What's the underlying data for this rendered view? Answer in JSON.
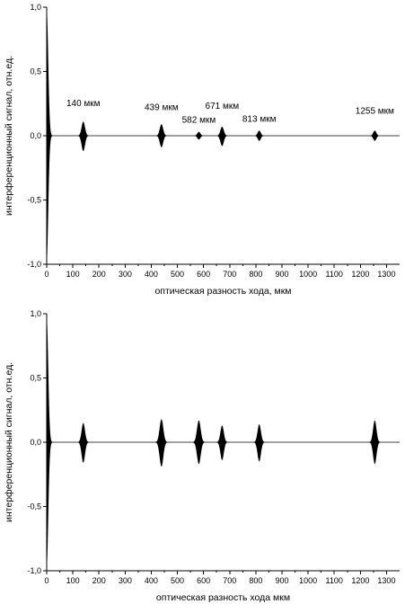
{
  "chart_data": [
    {
      "type": "line",
      "xlabel": "оптическая разность хода, мкм",
      "ylabel": "интерференционный сигнал, отн.ед.",
      "xlim": [
        0,
        1350
      ],
      "ylim": [
        -1.0,
        1.0
      ],
      "x_ticks": [
        "0",
        "100",
        "200",
        "300",
        "400",
        "500",
        "600",
        "700",
        "800",
        "900",
        "1000",
        "1100",
        "1200",
        "1300"
      ],
      "x_tick_values": [
        0,
        100,
        200,
        300,
        400,
        500,
        600,
        700,
        800,
        900,
        1000,
        1100,
        1200,
        1300
      ],
      "y_ticks": [
        "1,0",
        "0,5",
        "0,0",
        "-0,5",
        "-1,0"
      ],
      "y_tick_values": [
        1.0,
        0.5,
        0.0,
        -0.5,
        -1.0
      ],
      "grid": false,
      "series": [
        {
          "type": "interferogram-envelope",
          "packets": [
            {
              "center": 0,
              "amplitude_pos": 0.98,
              "amplitude_neg": -0.98,
              "halfwidth": 22,
              "one_sided": true
            },
            {
              "center": 140,
              "amplitude_pos": 0.11,
              "amplitude_neg": -0.12,
              "halfwidth": 22
            },
            {
              "center": 439,
              "amplitude_pos": 0.09,
              "amplitude_neg": -0.09,
              "halfwidth": 22
            },
            {
              "center": 582,
              "amplitude_pos": 0.03,
              "amplitude_neg": -0.03,
              "halfwidth": 20
            },
            {
              "center": 671,
              "amplitude_pos": 0.07,
              "amplitude_neg": -0.08,
              "halfwidth": 22
            },
            {
              "center": 813,
              "amplitude_pos": 0.04,
              "amplitude_neg": -0.04,
              "halfwidth": 20
            },
            {
              "center": 1255,
              "amplitude_pos": 0.04,
              "amplitude_neg": -0.04,
              "halfwidth": 20
            }
          ]
        }
      ],
      "annotations": [
        {
          "text": "140 мкм",
          "x": 140,
          "y": 0.23
        },
        {
          "text": "439 мкм",
          "x": 439,
          "y": 0.2
        },
        {
          "text": "582 мкм",
          "x": 582,
          "y": 0.1
        },
        {
          "text": "671 мкм",
          "x": 671,
          "y": 0.21
        },
        {
          "text": "813 мкм",
          "x": 813,
          "y": 0.11
        },
        {
          "text": "1255 мкм",
          "x": 1255,
          "y": 0.17
        }
      ]
    },
    {
      "type": "line",
      "xlabel": "оптическая разность хода  мкм",
      "ylabel": "интерференционный сигнал, отн.ед.",
      "xlim": [
        0,
        1350
      ],
      "ylim": [
        -1.0,
        1.0
      ],
      "x_ticks": [
        "0",
        "100",
        "200",
        "300",
        "400",
        "500",
        "600",
        "700",
        "800",
        "900",
        "1000",
        "1100",
        "1200",
        "1300"
      ],
      "x_tick_values": [
        0,
        100,
        200,
        300,
        400,
        500,
        600,
        700,
        800,
        900,
        1000,
        1100,
        1200,
        1300
      ],
      "y_ticks": [
        "1,0",
        "0,5",
        "0,0",
        "-0,5",
        "-1,0"
      ],
      "y_tick_values": [
        1.0,
        0.5,
        0.0,
        -0.5,
        -1.0
      ],
      "grid": false,
      "series": [
        {
          "type": "interferogram-envelope",
          "packets": [
            {
              "center": 0,
              "amplitude_pos": 0.97,
              "amplitude_neg": -0.97,
              "halfwidth": 22,
              "one_sided": true
            },
            {
              "center": 140,
              "amplitude_pos": 0.15,
              "amplitude_neg": -0.16,
              "halfwidth": 22
            },
            {
              "center": 439,
              "amplitude_pos": 0.18,
              "amplitude_neg": -0.19,
              "halfwidth": 24
            },
            {
              "center": 582,
              "amplitude_pos": 0.17,
              "amplitude_neg": -0.17,
              "halfwidth": 24
            },
            {
              "center": 671,
              "amplitude_pos": 0.13,
              "amplitude_neg": -0.14,
              "halfwidth": 22
            },
            {
              "center": 813,
              "amplitude_pos": 0.14,
              "amplitude_neg": -0.15,
              "halfwidth": 22
            },
            {
              "center": 1255,
              "amplitude_pos": 0.17,
              "amplitude_neg": -0.17,
              "halfwidth": 22
            }
          ]
        }
      ],
      "annotations": []
    }
  ]
}
